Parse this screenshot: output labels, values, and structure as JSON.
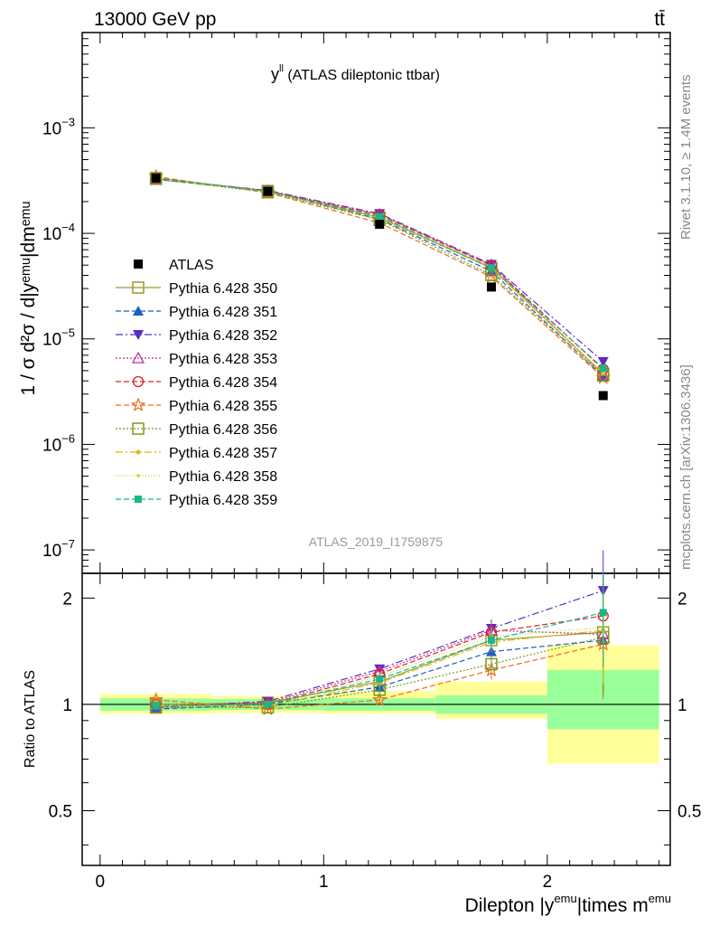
{
  "header": {
    "energy_label": "13000 GeV pp",
    "process_label": "tt̄"
  },
  "side_labels": {
    "rivet": "Rivet 3.1.10, ≥ 1.4M events",
    "mcplots": "mcplots.cern.ch [arXiv:1306.3436]"
  },
  "chart_data": {
    "type": "scatter",
    "title_main": "y",
    "title_sup": "ll",
    "title_rest": " (ATLAS dileptonic ttbar)",
    "watermark": "ATLAS_2019_I1759875",
    "ylabel": "1 / σ  d²σ / d|yᵉᵐᵘ|dmᵉᵐᵘ",
    "xlabel_parts": [
      "Dilepton |y",
      "emu",
      "|times m",
      "emu"
    ],
    "ratio_ylabel": "Ratio to ATLAS",
    "yscale": "log",
    "ylim": [
      6e-08,
      0.008
    ],
    "xlim": [
      -0.08,
      2.55
    ],
    "ratio_ylim": [
      0.35,
      2.35
    ],
    "x_ticks": [
      {
        "value": 0,
        "label": "0"
      },
      {
        "value": 1,
        "label": "1"
      },
      {
        "value": 2,
        "label": "2"
      }
    ],
    "y_ticks": [
      {
        "value": 1e-07,
        "mant": "10",
        "exp": "−7"
      },
      {
        "value": 1e-06,
        "mant": "10",
        "exp": "−6"
      },
      {
        "value": 1e-05,
        "mant": "10",
        "exp": "−5"
      },
      {
        "value": 0.0001,
        "mant": "10",
        "exp": "−4"
      },
      {
        "value": 0.001,
        "mant": "10",
        "exp": "−3"
      }
    ],
    "ratio_ticks": [
      {
        "value": 0.5,
        "label": "0.5"
      },
      {
        "value": 1,
        "label": "1"
      },
      {
        "value": 2,
        "label": "2"
      }
    ],
    "x": [
      0.25,
      0.75,
      1.25,
      1.75,
      2.25
    ],
    "bin_edges": [
      0,
      0.5,
      1,
      1.5,
      2,
      2.5
    ],
    "data": {
      "name": "ATLAS",
      "values": [
        0.000335,
        0.00025,
        0.000122,
        3.1e-05,
        2.9e-06
      ]
    },
    "band_inner": [
      [
        0.96,
        1.04
      ],
      [
        0.965,
        1.035
      ],
      [
        0.96,
        1.04
      ],
      [
        0.94,
        1.06
      ],
      [
        0.85,
        1.25
      ]
    ],
    "band_outer": [
      [
        0.94,
        1.07
      ],
      [
        0.945,
        1.055
      ],
      [
        0.94,
        1.09
      ],
      [
        0.91,
        1.16
      ],
      [
        0.68,
        1.47
      ]
    ],
    "series": [
      {
        "name": "Pythia 6.428 350",
        "color": "#9a9a2f",
        "marker": "square-open",
        "dash": "",
        "ratio": [
          1.0,
          1.01,
          1.16,
          1.52,
          1.6
        ]
      },
      {
        "name": "Pythia 6.428 351",
        "color": "#1f5fc0",
        "marker": "triangle-up",
        "dash": "6,3",
        "ratio": [
          0.97,
          1.0,
          1.12,
          1.41,
          1.52
        ]
      },
      {
        "name": "Pythia 6.428 352",
        "color": "#5b2bc4",
        "marker": "triangle-down",
        "dash": "8,3,2,3",
        "ratio": [
          0.98,
          1.02,
          1.26,
          1.64,
          2.1
        ]
      },
      {
        "name": "Pythia 6.428 353",
        "color": "#c0309a",
        "marker": "triangle-open",
        "dash": "2,2",
        "ratio": [
          0.98,
          1.01,
          1.24,
          1.62,
          1.58
        ]
      },
      {
        "name": "Pythia 6.428 354",
        "color": "#e0202a",
        "marker": "circle-open",
        "dash": "6,3",
        "ratio": [
          1.0,
          1.0,
          1.22,
          1.6,
          1.78
        ]
      },
      {
        "name": "Pythia 6.428 355",
        "color": "#ef6a1a",
        "marker": "star-open",
        "dash": "6,3",
        "ratio": [
          1.03,
          0.97,
          1.03,
          1.25,
          1.48
        ]
      },
      {
        "name": "Pythia 6.428 356",
        "color": "#7a9a1a",
        "marker": "square-open",
        "dash": "2,2",
        "ratio": [
          0.98,
          0.98,
          1.1,
          1.3,
          1.55
        ]
      },
      {
        "name": "Pythia 6.428 357",
        "color": "#e0b81a",
        "marker": "dot",
        "dash": "8,3,2,3",
        "ratio": [
          0.99,
          0.99,
          1.15,
          1.5,
          1.62
        ]
      },
      {
        "name": "Pythia 6.428 358",
        "color": "#c8d030",
        "marker": "dot-small",
        "dash": "1,2",
        "ratio": [
          1.0,
          1.0,
          1.2,
          1.56,
          1.65
        ]
      },
      {
        "name": "Pythia 6.428 359",
        "color": "#19b78a",
        "marker": "square",
        "dash": "6,3",
        "ratio": [
          0.99,
          1.0,
          1.18,
          1.52,
          1.82
        ]
      }
    ],
    "ratio_errors": [
      0.02,
      0.02,
      0.03,
      0.06,
      0.3
    ]
  }
}
